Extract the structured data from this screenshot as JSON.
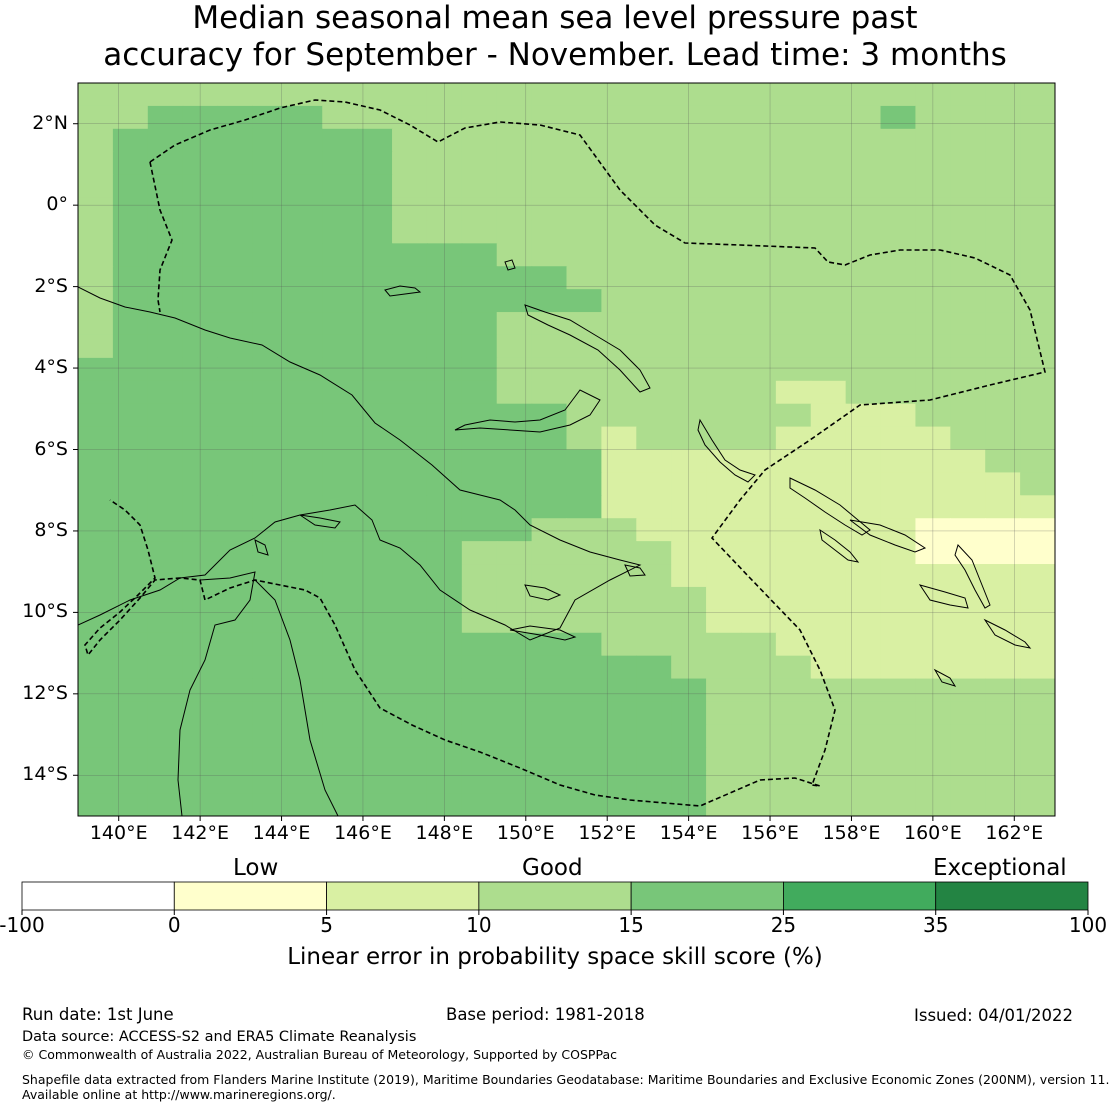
{
  "title": {
    "line1": "Median seasonal mean sea level pressure past",
    "line2": "accuracy for September - November. Lead time: 3 months"
  },
  "map": {
    "lon_range": [
      139,
      163
    ],
    "lat_range": [
      -15,
      3
    ],
    "lon_ticks": [
      "140°E",
      "142°E",
      "144°E",
      "146°E",
      "148°E",
      "150°E",
      "152°E",
      "154°E",
      "156°E",
      "158°E",
      "160°E",
      "162°E"
    ],
    "lat_ticks": [
      "2°N",
      "0°",
      "2°S",
      "4°S",
      "6°S",
      "8°S",
      "10°S",
      "12°S",
      "14°S"
    ],
    "gridlines": true,
    "region": "Papua New Guinea and Solomon Islands",
    "grid_cell_deg": 0.833,
    "category_grid": [
      "3333333333333333333333333333",
      "3344444333333333333333343333",
      "3444444443333333333333333333",
      "3444444443333333333333333333",
      "3444444443333333333333333333",
      "3444444443333333333333333333",
      "3444444443333333333333333333",
      "3444444444443333333333333333",
      "3444444444444433333333333333",
      "3444444444444443333333333333",
      "3444444444443333333333333333",
      "3444444444443333333333333333",
      "4444444444443333333333333333",
      "4444444444443333333322333333",
      "4444444444444433333332223333",
      "4444444444444432333322222333",
      "4444444444444442222222222233",
      "4444444444444442222222222223",
      "4444444444444442222222222222",
      "4444444444444333222222221111",
      "4444444444433333322222221111",
      "4444444444433333322222222222",
      "4444444444433333332222222222",
      "4444444444433333332222222222",
      "4444444444444443333322222222",
      "4444444444444444433332222222",
      "4444444444444444443333333333",
      "4444444444444444443333333333",
      "4444444444444444443333333333",
      "4444444444444444443333333333",
      "4444444444444444443333333333",
      "4444444444444444443333333333"
    ]
  },
  "legend": {
    "title": "Linear error in probability space skill score (%)",
    "category_labels": [
      "Low",
      "Good",
      "Exceptional"
    ],
    "bounds": [
      "-100",
      "0",
      "5",
      "10",
      "15",
      "25",
      "35",
      "100"
    ],
    "colors": [
      "#ffffff",
      "#ffffcc",
      "#d9f0a3",
      "#addd8e",
      "#78c679",
      "#41ab5d",
      "#238443"
    ]
  },
  "footer": {
    "run_date": "Run date: 1st June",
    "base_period": "Base period: 1981-2018",
    "issued": "Issued: 04/01/2022",
    "data_source": "Data source: ACCESS-S2 and ERA5 Climate Reanalysis",
    "copyright": "© Commonwealth of Australia 2022, Australian Bureau of Meteorology, Supported by COSPPac",
    "shapefile_line1": "Shapefile data extracted from Flanders Marine Institute (2019), Maritime Boundaries Geodatabase: Maritime Boundaries and Exclusive Economic Zones (200NM), version 11.",
    "shapefile_line2": "Available online at http://www.marineregions.org/."
  }
}
